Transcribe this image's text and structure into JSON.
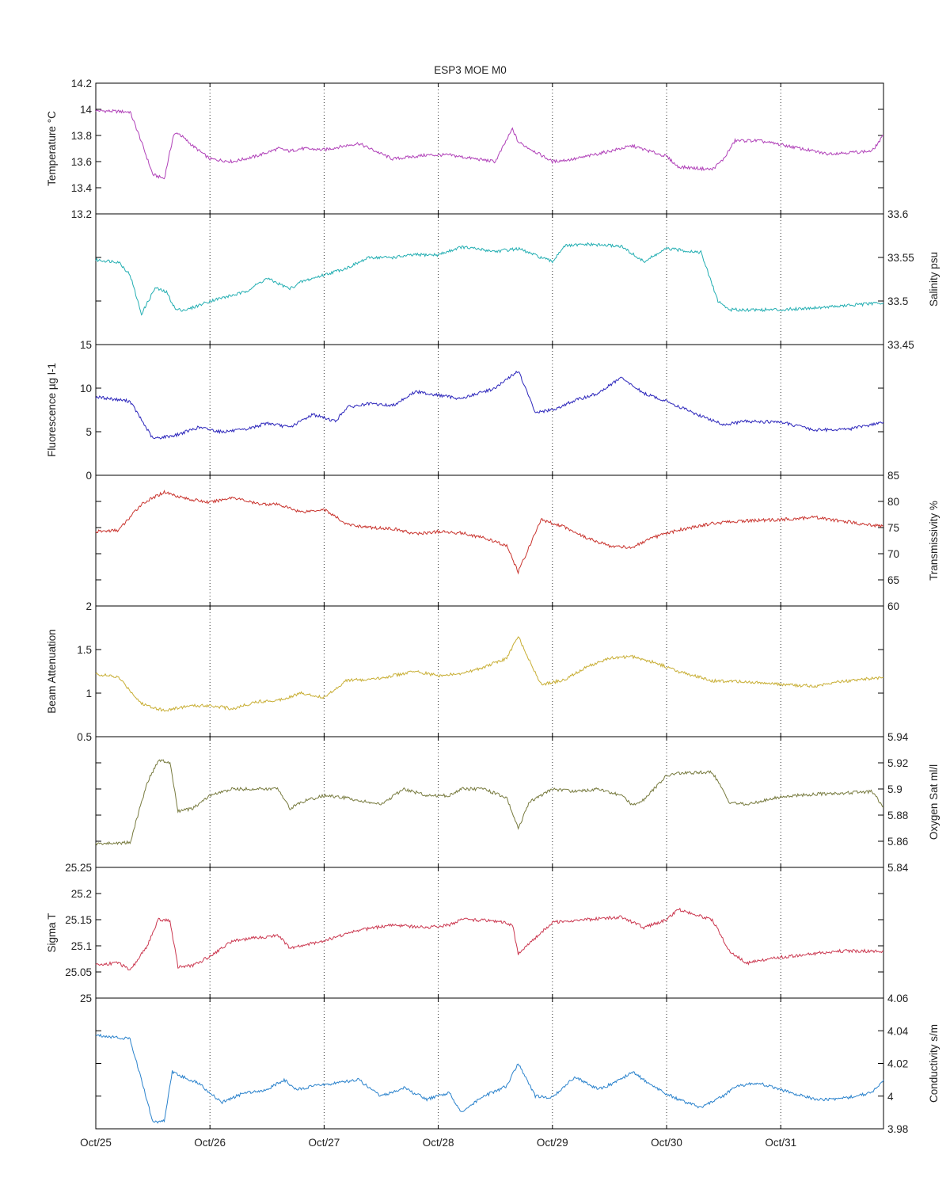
{
  "figure": {
    "title": "ESP3 MOE   M0",
    "x_ticks": [
      "Oct/25",
      "Oct/26",
      "Oct/27",
      "Oct/28",
      "Oct/29",
      "Oct/30",
      "Oct/31"
    ],
    "x_range_days": [
      25,
      31.9
    ],
    "grid": "vertical dotted at day ticks"
  },
  "chart_data": [
    {
      "type": "line",
      "ylabel": "Temperature °C",
      "axis_side": "left",
      "color": "#b040b8",
      "ylim": [
        13.2,
        14.2
      ],
      "ticks": [
        13.2,
        13.4,
        13.6,
        13.8,
        14,
        14.2
      ],
      "tick_labels": [
        "13.2",
        "13.4",
        "13.6",
        "13.8",
        "14",
        "14.2"
      ],
      "x": [
        25,
        25.3,
        25.38,
        25.5,
        25.6,
        25.68,
        25.72,
        25.85,
        26.0,
        26.2,
        26.4,
        26.6,
        26.7,
        26.8,
        27.0,
        27.3,
        27.6,
        27.9,
        28.1,
        28.25,
        28.5,
        28.65,
        28.7,
        29.0,
        29.2,
        29.5,
        29.7,
        30.0,
        30.1,
        30.4,
        30.5,
        30.6,
        30.8,
        31.0,
        31.4,
        31.8,
        31.9
      ],
      "y": [
        13.99,
        13.98,
        13.8,
        13.5,
        13.47,
        13.8,
        13.82,
        13.72,
        13.62,
        13.6,
        13.64,
        13.7,
        13.68,
        13.7,
        13.69,
        13.74,
        13.62,
        13.65,
        13.65,
        13.63,
        13.6,
        13.85,
        13.75,
        13.6,
        13.62,
        13.68,
        13.72,
        13.64,
        13.56,
        13.54,
        13.62,
        13.76,
        13.76,
        13.73,
        13.66,
        13.68,
        13.8
      ]
    },
    {
      "type": "line",
      "ylabel": "Salinity psu",
      "axis_side": "right",
      "color": "#23aeb2",
      "ylim": [
        33.45,
        33.6
      ],
      "ticks": [
        33.45,
        33.5,
        33.55,
        33.6
      ],
      "tick_labels": [
        "33.45",
        "33.5",
        "33.55",
        "33.6"
      ],
      "x": [
        25,
        25.2,
        25.3,
        25.4,
        25.52,
        25.62,
        25.7,
        25.8,
        26.0,
        26.3,
        26.5,
        26.7,
        26.8,
        27.0,
        27.2,
        27.4,
        27.6,
        27.8,
        28.0,
        28.2,
        28.5,
        28.7,
        29.0,
        29.1,
        29.3,
        29.6,
        29.8,
        30.0,
        30.3,
        30.45,
        30.55,
        30.7,
        31.0,
        31.5,
        31.9
      ],
      "y": [
        33.547,
        33.545,
        33.53,
        33.485,
        33.515,
        33.51,
        33.49,
        33.49,
        33.5,
        33.51,
        33.526,
        33.514,
        33.522,
        33.53,
        33.538,
        33.55,
        33.55,
        33.553,
        33.553,
        33.562,
        33.557,
        33.56,
        33.545,
        33.563,
        33.565,
        33.563,
        33.545,
        33.56,
        33.556,
        33.5,
        33.49,
        33.49,
        33.49,
        33.494,
        33.498
      ]
    },
    {
      "type": "line",
      "ylabel": "Fluorescence µg l-1",
      "axis_side": "left",
      "color": "#2c26bb",
      "ylim": [
        0,
        15
      ],
      "ticks": [
        0,
        5,
        10,
        15
      ],
      "tick_labels": [
        "0",
        "5",
        "10",
        "15"
      ],
      "x": [
        25,
        25.3,
        25.5,
        25.7,
        25.9,
        26.1,
        26.3,
        26.5,
        26.7,
        26.9,
        27.1,
        27.2,
        27.4,
        27.6,
        27.8,
        28.0,
        28.2,
        28.3,
        28.5,
        28.7,
        28.85,
        29.0,
        29.2,
        29.4,
        29.6,
        29.8,
        30.0,
        30.3,
        30.5,
        30.7,
        31.0,
        31.3,
        31.6,
        31.9
      ],
      "y": [
        9,
        8.5,
        4.2,
        4.6,
        5.5,
        5,
        5.2,
        6,
        5.5,
        7,
        6.2,
        7.8,
        8.2,
        8,
        9.6,
        9.2,
        8.8,
        9.2,
        10,
        12,
        7.2,
        7.5,
        8.6,
        9.4,
        11.2,
        9.4,
        8.5,
        6.8,
        5.8,
        6.2,
        6.1,
        5.2,
        5.3,
        6.1
      ]
    },
    {
      "type": "line",
      "ylabel": "Transmissivity %",
      "axis_side": "right",
      "color": "#c9342e",
      "ylim": [
        60,
        85
      ],
      "ticks": [
        60,
        65,
        70,
        75,
        80,
        85
      ],
      "tick_labels": [
        "60",
        "65",
        "70",
        "75",
        "80",
        "85"
      ],
      "x": [
        25,
        25.2,
        25.4,
        25.6,
        25.8,
        26.0,
        26.2,
        26.4,
        26.6,
        26.8,
        27.0,
        27.2,
        27.4,
        27.6,
        27.8,
        28.0,
        28.2,
        28.4,
        28.6,
        28.7,
        28.9,
        29.1,
        29.3,
        29.5,
        29.7,
        29.9,
        30.1,
        30.4,
        30.7,
        31.0,
        31.3,
        31.5,
        31.9
      ],
      "y": [
        74.2,
        74.5,
        79.5,
        81.8,
        80.5,
        79.8,
        80.8,
        79.6,
        79.4,
        78,
        78.5,
        75.6,
        75,
        74.8,
        73.8,
        74.2,
        74,
        73,
        71.5,
        66.5,
        76.5,
        75.2,
        73,
        71.5,
        71.2,
        73.2,
        74.5,
        75.8,
        76.3,
        76.5,
        77,
        76.3,
        75.2
      ]
    },
    {
      "type": "line",
      "ylabel": "Beam Attenuation",
      "axis_side": "left",
      "color": "#c8ae34",
      "ylim": [
        0.5,
        2
      ],
      "ticks": [
        0.5,
        1,
        1.5,
        2
      ],
      "tick_labels": [
        "0.5",
        "1",
        "1.5",
        "2"
      ],
      "x": [
        25,
        25.2,
        25.4,
        25.6,
        25.8,
        26.0,
        26.2,
        26.4,
        26.6,
        26.8,
        27.0,
        27.2,
        27.4,
        27.6,
        27.8,
        28.0,
        28.2,
        28.4,
        28.6,
        28.7,
        28.9,
        29.1,
        29.3,
        29.5,
        29.7,
        29.9,
        30.1,
        30.4,
        30.7,
        31.0,
        31.3,
        31.5,
        31.9
      ],
      "y": [
        1.22,
        1.18,
        0.88,
        0.8,
        0.85,
        0.86,
        0.82,
        0.9,
        0.92,
        1,
        0.95,
        1.15,
        1.15,
        1.2,
        1.25,
        1.2,
        1.22,
        1.3,
        1.4,
        1.65,
        1.1,
        1.15,
        1.3,
        1.4,
        1.42,
        1.35,
        1.25,
        1.14,
        1.13,
        1.1,
        1.08,
        1.13,
        1.18
      ]
    },
    {
      "type": "line",
      "ylabel": "Oxygen Sat ml/l",
      "axis_side": "right",
      "color": "#777a3e",
      "ylim": [
        5.84,
        5.94
      ],
      "ticks": [
        5.84,
        5.86,
        5.88,
        5.9,
        5.92,
        5.94
      ],
      "tick_labels": [
        "5.84",
        "5.86",
        "5.88",
        "5.9",
        "5.92",
        "5.94"
      ],
      "x": [
        25,
        25.3,
        25.45,
        25.55,
        25.65,
        25.72,
        25.85,
        26.0,
        26.2,
        26.4,
        26.6,
        26.7,
        26.8,
        27.0,
        27.2,
        27.5,
        27.7,
        27.9,
        28.1,
        28.2,
        28.4,
        28.6,
        28.7,
        28.8,
        29.0,
        29.2,
        29.4,
        29.6,
        29.7,
        29.8,
        30.0,
        30.1,
        30.4,
        30.55,
        30.7,
        31.0,
        31.3,
        31.8,
        31.9
      ],
      "y": [
        5.858,
        5.859,
        5.905,
        5.922,
        5.92,
        5.883,
        5.885,
        5.895,
        5.9,
        5.9,
        5.9,
        5.885,
        5.89,
        5.895,
        5.893,
        5.888,
        5.9,
        5.895,
        5.895,
        5.9,
        5.9,
        5.893,
        5.87,
        5.89,
        5.9,
        5.898,
        5.9,
        5.895,
        5.888,
        5.892,
        5.91,
        5.912,
        5.913,
        5.89,
        5.888,
        5.894,
        5.896,
        5.898,
        5.886
      ]
    },
    {
      "type": "line",
      "ylabel": "Sigma T",
      "axis_side": "left",
      "color": "#cb3850",
      "ylim": [
        25,
        25.25
      ],
      "ticks": [
        25,
        25.05,
        25.1,
        25.15,
        25.2,
        25.25
      ],
      "tick_labels": [
        "25",
        "25.05",
        "25.1",
        "25.15",
        "25.2",
        "25.25"
      ],
      "x": [
        25,
        25.2,
        25.3,
        25.45,
        25.55,
        25.65,
        25.72,
        25.85,
        26.0,
        26.2,
        26.4,
        26.6,
        26.7,
        26.8,
        27.0,
        27.3,
        27.6,
        27.9,
        28.1,
        28.2,
        28.5,
        28.65,
        28.7,
        29.0,
        29.3,
        29.6,
        29.8,
        30.0,
        30.1,
        30.4,
        30.55,
        30.7,
        31.0,
        31.5,
        31.9
      ],
      "y": [
        25.063,
        25.068,
        25.052,
        25.1,
        25.15,
        25.148,
        25.06,
        25.062,
        25.08,
        25.11,
        25.115,
        25.12,
        25.095,
        25.1,
        25.11,
        25.13,
        25.14,
        25.135,
        25.14,
        25.15,
        25.148,
        25.14,
        25.085,
        25.145,
        25.15,
        25.155,
        25.135,
        25.15,
        25.17,
        25.15,
        25.09,
        25.067,
        25.078,
        25.09,
        25.09
      ]
    },
    {
      "type": "line",
      "ylabel": "Conductivity s/m",
      "axis_side": "right",
      "color": "#2a82cc",
      "ylim": [
        3.98,
        4.06
      ],
      "ticks": [
        3.98,
        4,
        4.02,
        4.04,
        4.06
      ],
      "tick_labels": [
        "3.98",
        "4",
        "4.02",
        "4.04",
        "4.06"
      ],
      "x": [
        25,
        25.3,
        25.4,
        25.5,
        25.6,
        25.67,
        25.75,
        25.9,
        26.1,
        26.3,
        26.5,
        26.65,
        26.75,
        26.9,
        27.1,
        27.3,
        27.5,
        27.7,
        27.9,
        28.1,
        28.2,
        28.4,
        28.6,
        28.7,
        28.85,
        29.0,
        29.2,
        29.4,
        29.6,
        29.7,
        29.9,
        30.1,
        30.3,
        30.5,
        30.6,
        30.8,
        31.0,
        31.3,
        31.5,
        31.8,
        31.9
      ],
      "y": [
        4.0375,
        4.035,
        4.01,
        3.984,
        3.985,
        4.015,
        4.012,
        4.008,
        3.996,
        4.002,
        4.004,
        4.01,
        4.004,
        4.006,
        4.008,
        4.01,
        4.0,
        4.005,
        3.998,
        4.002,
        3.99,
        4.0,
        4.006,
        4.02,
        4.0,
        3.999,
        4.012,
        4.004,
        4.01,
        4.015,
        4.005,
        3.998,
        3.993,
        4.0,
        4.006,
        4.008,
        4.004,
        3.998,
        3.998,
        4.002,
        4.01
      ]
    }
  ]
}
